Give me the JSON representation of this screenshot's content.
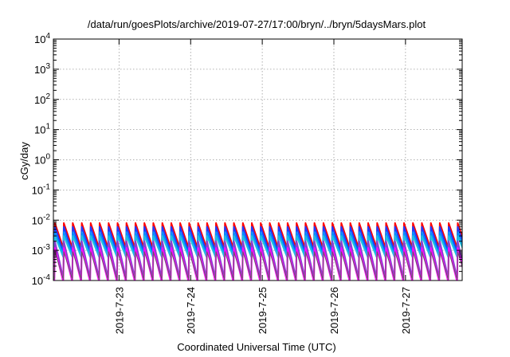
{
  "chart_data": {
    "type": "line",
    "title": "/data/run/goesPlots/archive/2019-07-27/17:00/bryn/../bryn/5daysMars.plot",
    "xlabel": "Coordinated Universal Time (UTC)",
    "ylabel": "cGy/day",
    "y_scale": "log",
    "ylim": [
      0.0001,
      10000
    ],
    "y_ticks": [
      {
        "value": 10000,
        "base": "10",
        "exp": "4"
      },
      {
        "value": 1000,
        "base": "10",
        "exp": "3"
      },
      {
        "value": 100,
        "base": "10",
        "exp": "2"
      },
      {
        "value": 10,
        "base": "10",
        "exp": "1"
      },
      {
        "value": 1,
        "base": "10",
        "exp": "0"
      },
      {
        "value": 0.1,
        "base": "10",
        "exp": "-1"
      },
      {
        "value": 0.01,
        "base": "10",
        "exp": "-2"
      },
      {
        "value": 0.001,
        "base": "10",
        "exp": "-3"
      },
      {
        "value": 0.0001,
        "base": "10",
        "exp": "-4"
      }
    ],
    "xlim": [
      "2019-07-22 02:00",
      "2019-07-27 19:00"
    ],
    "x_ticks": [
      {
        "value": "2019-07-23 00:00",
        "label": "2019-7-23"
      },
      {
        "value": "2019-07-24 00:00",
        "label": "2019-7-24"
      },
      {
        "value": "2019-07-25 00:00",
        "label": "2019-7-25"
      },
      {
        "value": "2019-07-26 00:00",
        "label": "2019-7-26"
      },
      {
        "value": "2019-07-27 00:00",
        "label": "2019-7-27"
      }
    ],
    "grid": true,
    "legend": "none",
    "pattern": {
      "kind": "sawtooth",
      "period_hours": 3,
      "first_peak": "2019-07-22 02:30",
      "note_values": "log10 of dose-rate at each peak and trough"
    },
    "series": [
      {
        "color": "#ff0000",
        "peak": 0.008,
        "trough": 0.0012,
        "width": 2
      },
      {
        "color": "#1e3cff",
        "peak": 0.006,
        "trough": 0.0009,
        "width": 2
      },
      {
        "color": "#0090ff",
        "peak": 0.004,
        "trough": 0.0007,
        "width": 2
      },
      {
        "color": "#20c0e0",
        "peak": 0.003,
        "trough": 0.0006,
        "width": 2
      },
      {
        "color": "#8a3fd0",
        "peak": 0.002,
        "trough": 0.00012,
        "width": 2
      },
      {
        "color": "#ff00ff",
        "peak": 0.0012,
        "trough": 9e-05,
        "width": 2
      },
      {
        "color": "#606060",
        "peak": 0.0009,
        "trough": 0.00011,
        "width": 1
      }
    ]
  }
}
